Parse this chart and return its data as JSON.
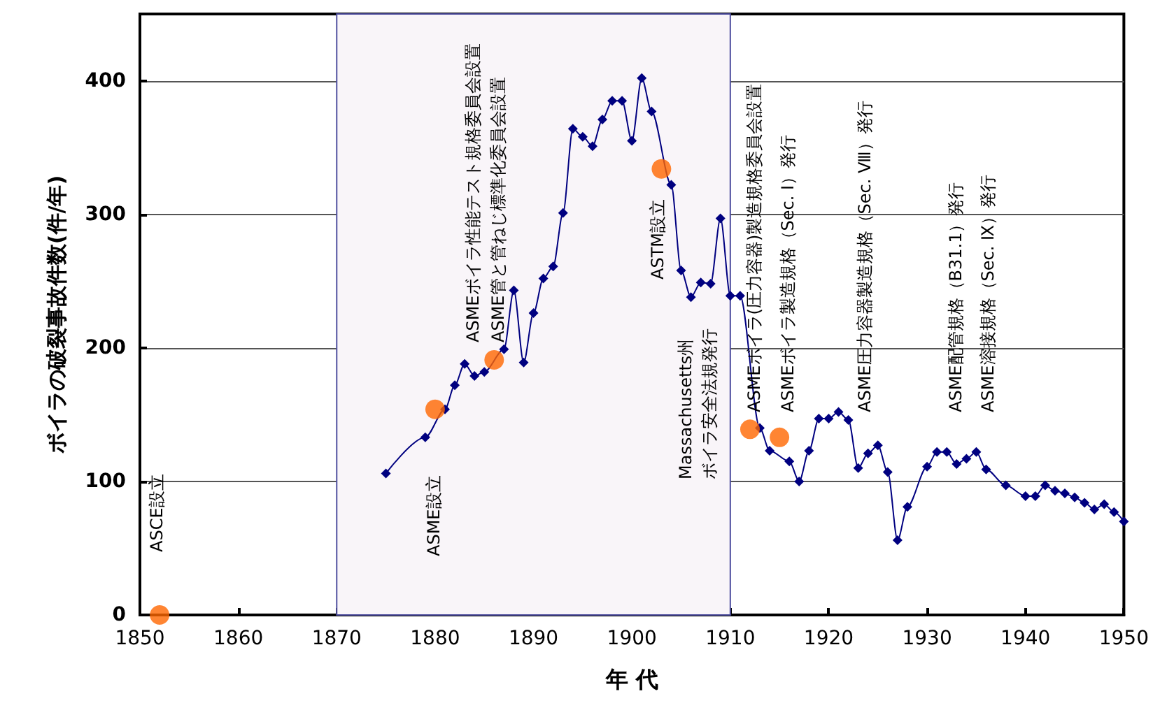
{
  "chart_data": {
    "type": "line",
    "xlabel": "年 代",
    "ylabel": "ボイラの破裂事故件数(件/年)",
    "xlim": [
      1850,
      1950
    ],
    "xticks": [
      1850,
      1860,
      1870,
      1880,
      1890,
      1900,
      1910,
      1920,
      1930,
      1940,
      1950
    ],
    "ylim": [
      0,
      450
    ],
    "yticks": [
      0,
      100,
      200,
      300,
      400
    ],
    "grid": "y",
    "series": [
      {
        "color": "#000080",
        "marker": "diamond",
        "x": [
          1875,
          1879,
          1881,
          1882,
          1883,
          1884,
          1885,
          1887,
          1888,
          1889,
          1890,
          1891,
          1892,
          1893,
          1894,
          1895,
          1896,
          1897,
          1898,
          1899,
          1900,
          1901,
          1902,
          1904,
          1905,
          1906,
          1907,
          1908,
          1909,
          1910,
          1911,
          1913,
          1914,
          1916,
          1917,
          1918,
          1919,
          1920,
          1921,
          1922,
          1923,
          1924,
          1925,
          1926,
          1927,
          1928,
          1930,
          1931,
          1932,
          1933,
          1934,
          1935,
          1936,
          1938,
          1940,
          1941,
          1942,
          1943,
          1944,
          1945,
          1946,
          1947,
          1948,
          1949,
          1950
        ],
        "values": [
          106,
          133,
          154,
          172,
          188,
          179,
          182,
          199,
          243,
          189,
          226,
          252,
          261,
          301,
          364,
          358,
          351,
          371,
          385,
          385,
          355,
          402,
          377,
          322,
          258,
          238,
          249,
          248,
          297,
          239,
          239,
          140,
          123,
          115,
          100,
          123,
          147,
          147,
          152,
          146,
          110,
          121,
          127,
          107,
          56,
          81,
          111,
          122,
          122,
          113,
          117,
          122,
          109,
          97,
          89,
          89,
          97,
          93,
          91,
          88,
          84,
          79,
          83,
          77,
          70
        ]
      },
      {
        "type": "scatter",
        "color": "#ff6600",
        "marker": "circle",
        "x": [
          1852,
          1880,
          1886,
          1903,
          1912,
          1915
        ],
        "values": [
          0,
          154,
          191,
          334,
          139,
          133
        ]
      }
    ],
    "bands": [
      {
        "axis": "x",
        "from": 1870,
        "to": 1910,
        "color": "#f9f5f9"
      }
    ],
    "annotations": [
      "ASCE設立",
      "ASME設立",
      "ASMEボイラ性能テスト規格委員会設置",
      "ASME管と管ねじ標準化委員会設置",
      "ASTM設立",
      "Massachusetts州",
      "ボイラ安全法規発行",
      "ASMEボイラ(圧力容器)製造規格委員会設置",
      "ASMEボイラ製造規格（Sec. Ⅰ）発行",
      "ASME圧力容器製造規格（Sec. Ⅷ）発行",
      "ASME配管規格（B31.1）発行",
      "ASME溶接規格（Sec. Ⅸ）発行"
    ]
  }
}
